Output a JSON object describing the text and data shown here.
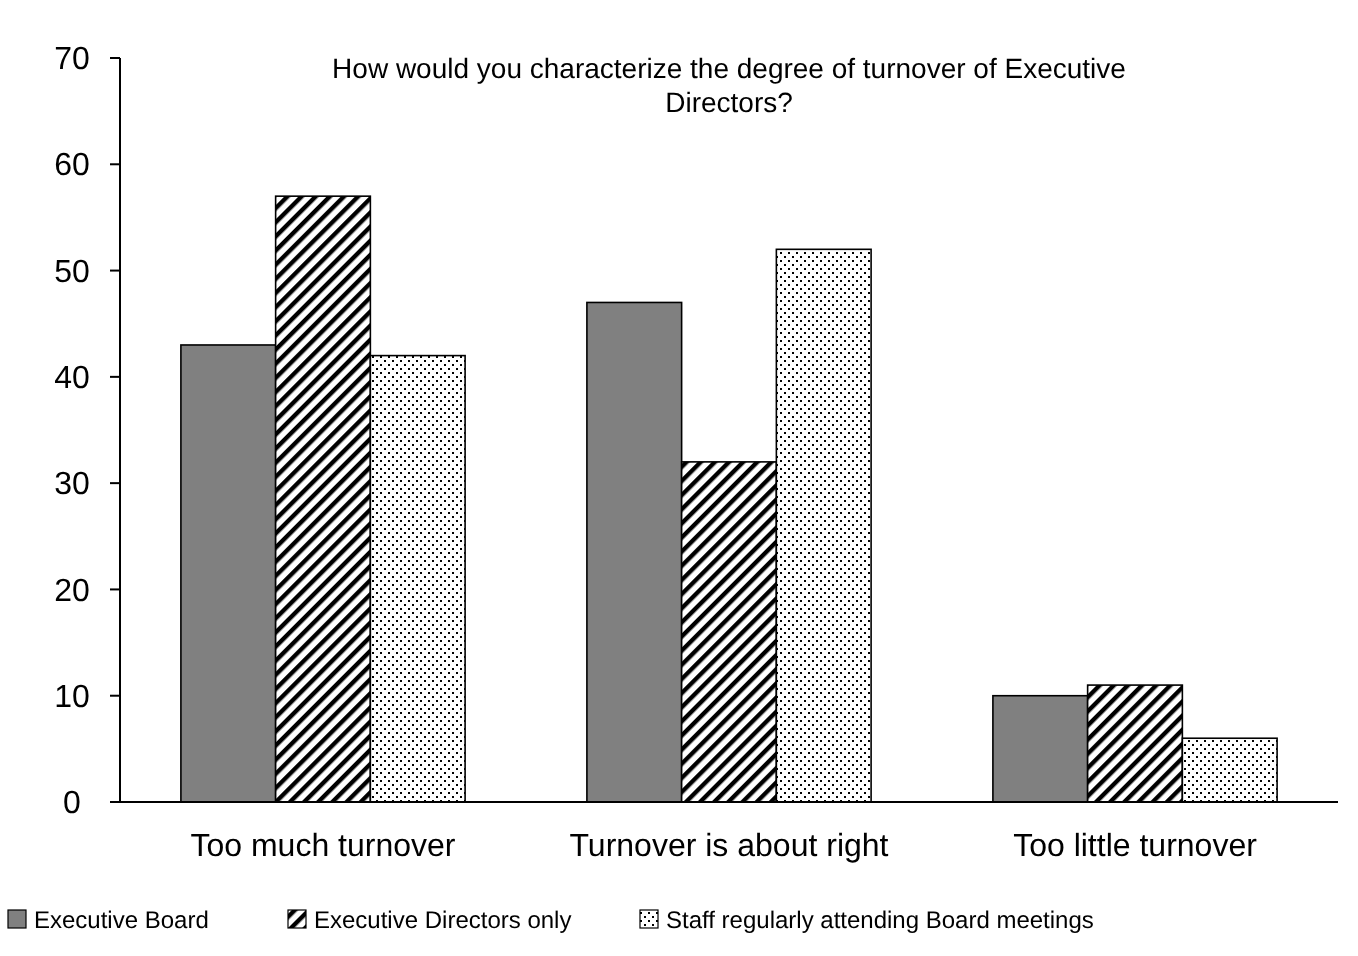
{
  "chart_data": {
    "type": "bar",
    "title": "How would you characterize the degree of turnover of Executive Directors?",
    "categories": [
      "Too much turnover",
      "Turnover is about right",
      "Too little turnover"
    ],
    "series": [
      {
        "name": "Executive Board",
        "color": "#808080",
        "values": [
          43,
          47,
          10
        ]
      },
      {
        "name": "Executive Directors only",
        "color": "#000000",
        "values": [
          57,
          32,
          11
        ]
      },
      {
        "name": "Staff regularly attending Board meetings",
        "color": "#000000",
        "values": [
          42,
          52,
          6
        ]
      }
    ],
    "ylim": [
      0,
      70
    ],
    "yticks": [
      0,
      10,
      20,
      30,
      40,
      50,
      60,
      70
    ],
    "grid": false,
    "legend": "bottom"
  }
}
